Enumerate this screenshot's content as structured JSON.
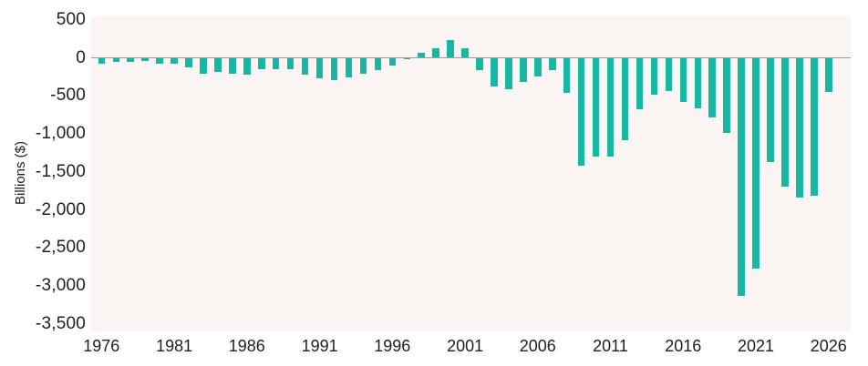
{
  "chart_data": {
    "type": "bar",
    "ylabel": "Billions ($)",
    "xlabel": "",
    "x": [
      1976,
      1977,
      1978,
      1979,
      1980,
      1981,
      1982,
      1983,
      1984,
      1985,
      1986,
      1987,
      1988,
      1989,
      1990,
      1991,
      1992,
      1993,
      1994,
      1995,
      1996,
      1997,
      1998,
      1999,
      2000,
      2001,
      2002,
      2003,
      2004,
      2005,
      2006,
      2007,
      2008,
      2009,
      2010,
      2011,
      2012,
      2013,
      2014,
      2015,
      2016,
      2017,
      2018,
      2019,
      2020,
      2021,
      2022,
      2023,
      2024,
      2025,
      2026
    ],
    "values": [
      -74,
      -54,
      -59,
      -41,
      -74,
      -79,
      -128,
      -208,
      -185,
      -212,
      -221,
      -150,
      -155,
      -153,
      -221,
      -269,
      -290,
      -255,
      -203,
      -164,
      -107,
      -22,
      69,
      126,
      236,
      128,
      -158,
      -378,
      -413,
      -318,
      -248,
      -161,
      -459,
      -1413,
      -1294,
      -1300,
      -1087,
      -680,
      -485,
      -438,
      -585,
      -665,
      -779,
      -984,
      -3132,
      -2775,
      -1375,
      -1694,
      -1834,
      -1810,
      -450
    ],
    "ylim": [
      -3500,
      500
    ],
    "ytick_values": [
      500,
      0,
      -500,
      -1000,
      -1500,
      -2000,
      -2500,
      -3000,
      -3500
    ],
    "ytick_labels": [
      "500",
      "0",
      "-500",
      "-1,000",
      "-1,500",
      "-2,000",
      "-2,500",
      "-3,000",
      "-3,500"
    ],
    "xtick_values": [
      1976,
      1981,
      1986,
      1991,
      1996,
      2001,
      2006,
      2011,
      2016,
      2021,
      2026
    ],
    "xtick_labels": [
      "1976",
      "1981",
      "1986",
      "1991",
      "1996",
      "2001",
      "2006",
      "2011",
      "2016",
      "2021",
      "2026"
    ],
    "grid": false,
    "legend": "none",
    "colors": {
      "bar": "#16b8a4",
      "plot_background": "#faf5f3",
      "zero_line": "#9e9a9a",
      "text": "#1e1e1e",
      "page_background": "#ffffff"
    }
  }
}
